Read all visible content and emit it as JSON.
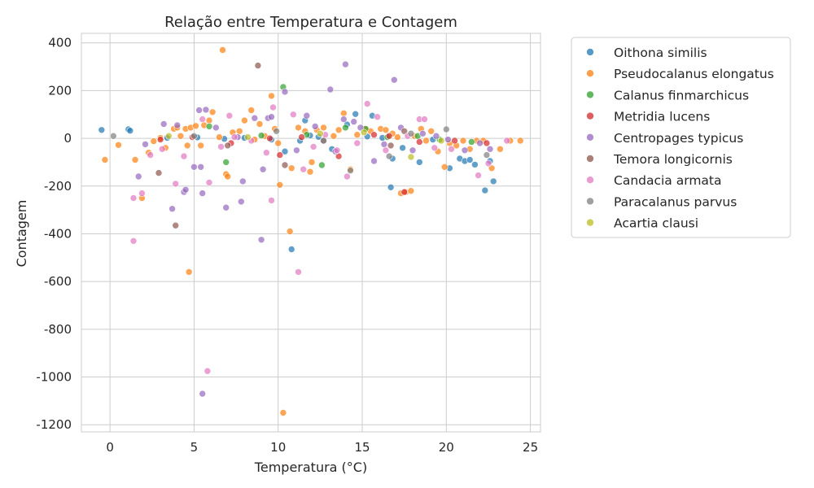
{
  "chart_data": {
    "type": "scatter",
    "title": "Relação entre Temperatura e Contagem",
    "xlabel": "Temperatura (°C)",
    "ylabel": "Contagem",
    "xlim": [
      -1.7,
      25.6
    ],
    "ylim": [
      -1230,
      440
    ],
    "xticks": [
      0,
      5,
      10,
      15,
      20,
      25
    ],
    "yticks": [
      400,
      200,
      0,
      -200,
      -400,
      -600,
      -800,
      -1000,
      -1200
    ],
    "grid": true,
    "legend_position": "outside-right",
    "series": [
      {
        "name": "Oithona similis",
        "color": "#1f77b4",
        "points": [
          [
            -0.5,
            35
          ],
          [
            1.1,
            38
          ],
          [
            1.2,
            32
          ],
          [
            3.4,
            2
          ],
          [
            5.2,
            4
          ],
          [
            6.8,
            -2
          ],
          [
            8.0,
            2
          ],
          [
            9.6,
            -5
          ],
          [
            10.4,
            -55
          ],
          [
            10.8,
            -465
          ],
          [
            11.3,
            -10
          ],
          [
            11.6,
            75
          ],
          [
            11.9,
            12
          ],
          [
            12.4,
            6
          ],
          [
            13.2,
            -45
          ],
          [
            14.1,
            58
          ],
          [
            14.6,
            102
          ],
          [
            15.3,
            8
          ],
          [
            15.6,
            95
          ],
          [
            16.2,
            2
          ],
          [
            16.7,
            -205
          ],
          [
            16.8,
            -85
          ],
          [
            17.4,
            -40
          ],
          [
            18.4,
            -100
          ],
          [
            19.2,
            -5
          ],
          [
            20.2,
            -125
          ],
          [
            20.8,
            -85
          ],
          [
            21.1,
            -95
          ],
          [
            21.4,
            -90
          ],
          [
            21.7,
            -110
          ],
          [
            22.3,
            -218
          ],
          [
            22.6,
            -95
          ],
          [
            22.8,
            -180
          ]
        ]
      },
      {
        "name": "Pseudocalanus elongatus",
        "color": "#ff7f0e",
        "points": [
          [
            -0.3,
            -90
          ],
          [
            0.5,
            -28
          ],
          [
            1.5,
            -90
          ],
          [
            1.9,
            -250
          ],
          [
            2.3,
            -60
          ],
          [
            2.6,
            -12
          ],
          [
            3.0,
            2
          ],
          [
            3.3,
            -40
          ],
          [
            3.8,
            40
          ],
          [
            4.0,
            45
          ],
          [
            4.2,
            10
          ],
          [
            4.5,
            40
          ],
          [
            4.6,
            -30
          ],
          [
            4.7,
            -560
          ],
          [
            4.8,
            45
          ],
          [
            5.1,
            52
          ],
          [
            5.4,
            -30
          ],
          [
            5.6,
            55
          ],
          [
            5.9,
            75
          ],
          [
            6.1,
            110
          ],
          [
            6.5,
            5
          ],
          [
            6.7,
            370
          ],
          [
            6.9,
            -150
          ],
          [
            7.0,
            -160
          ],
          [
            7.3,
            25
          ],
          [
            7.7,
            30
          ],
          [
            8.0,
            75
          ],
          [
            8.4,
            118
          ],
          [
            8.6,
            -5
          ],
          [
            8.9,
            60
          ],
          [
            9.2,
            10
          ],
          [
            9.6,
            178
          ],
          [
            9.8,
            40
          ],
          [
            10.0,
            -20
          ],
          [
            10.1,
            -195
          ],
          [
            10.3,
            -1150
          ],
          [
            10.7,
            -390
          ],
          [
            10.8,
            -125
          ],
          [
            11.2,
            45
          ],
          [
            11.6,
            30
          ],
          [
            11.9,
            -140
          ],
          [
            12.0,
            -100
          ],
          [
            12.3,
            35
          ],
          [
            12.7,
            45
          ],
          [
            13.3,
            10
          ],
          [
            13.6,
            35
          ],
          [
            13.9,
            105
          ],
          [
            14.3,
            -130
          ],
          [
            14.7,
            15
          ],
          [
            15.2,
            40
          ],
          [
            15.5,
            30
          ],
          [
            16.1,
            40
          ],
          [
            16.4,
            35
          ],
          [
            16.8,
            20
          ],
          [
            17.1,
            5
          ],
          [
            17.3,
            -230
          ],
          [
            17.6,
            -225
          ],
          [
            17.9,
            -220
          ],
          [
            18.1,
            10
          ],
          [
            18.5,
            40
          ],
          [
            18.8,
            -10
          ],
          [
            19.1,
            30
          ],
          [
            19.5,
            -55
          ],
          [
            19.9,
            -120
          ],
          [
            20.2,
            -20
          ],
          [
            20.6,
            -30
          ],
          [
            21.0,
            -10
          ],
          [
            21.4,
            -45
          ],
          [
            21.8,
            -10
          ],
          [
            22.2,
            -10
          ],
          [
            22.7,
            -125
          ],
          [
            23.2,
            -45
          ],
          [
            23.8,
            -10
          ],
          [
            24.4,
            -10
          ]
        ]
      },
      {
        "name": "Calanus finmarchicus",
        "color": "#2ca02c",
        "points": [
          [
            5.9,
            50
          ],
          [
            6.9,
            -100
          ],
          [
            9.0,
            12
          ],
          [
            10.3,
            215
          ],
          [
            11.7,
            15
          ],
          [
            12.6,
            -112
          ],
          [
            14.0,
            45
          ],
          [
            15.2,
            40
          ],
          [
            16.5,
            5
          ],
          [
            18.3,
            10
          ],
          [
            19.6,
            -5
          ],
          [
            21.5,
            -15
          ]
        ]
      },
      {
        "name": "Metridia lucens",
        "color": "#d62728",
        "points": [
          [
            3.0,
            -5
          ],
          [
            4.9,
            5
          ],
          [
            7.2,
            -20
          ],
          [
            9.5,
            0
          ],
          [
            10.1,
            -70
          ],
          [
            11.4,
            5
          ],
          [
            13.6,
            -75
          ],
          [
            15.7,
            15
          ],
          [
            16.6,
            10
          ],
          [
            17.5,
            -225
          ],
          [
            18.4,
            -15
          ],
          [
            20.5,
            -10
          ],
          [
            22.4,
            -20
          ]
        ]
      },
      {
        "name": "Centropages typicus",
        "color": "#9467bd",
        "points": [
          [
            1.7,
            -160
          ],
          [
            2.1,
            -25
          ],
          [
            3.2,
            60
          ],
          [
            3.7,
            -295
          ],
          [
            4.0,
            55
          ],
          [
            4.4,
            -225
          ],
          [
            4.5,
            -215
          ],
          [
            5.0,
            -120
          ],
          [
            5.3,
            118
          ],
          [
            5.4,
            -120
          ],
          [
            5.5,
            -230
          ],
          [
            5.5,
            -1070
          ],
          [
            5.7,
            120
          ],
          [
            6.3,
            45
          ],
          [
            6.9,
            -290
          ],
          [
            7.6,
            5
          ],
          [
            7.8,
            -265
          ],
          [
            7.9,
            -180
          ],
          [
            8.6,
            85
          ],
          [
            9.0,
            -425
          ],
          [
            9.1,
            -130
          ],
          [
            9.4,
            85
          ],
          [
            9.6,
            90
          ],
          [
            10.4,
            195
          ],
          [
            11.1,
            -50
          ],
          [
            11.7,
            95
          ],
          [
            12.2,
            50
          ],
          [
            13.1,
            205
          ],
          [
            13.4,
            -55
          ],
          [
            13.9,
            80
          ],
          [
            14.0,
            310
          ],
          [
            14.5,
            70
          ],
          [
            14.9,
            45
          ],
          [
            15.7,
            -95
          ],
          [
            16.3,
            -25
          ],
          [
            16.9,
            245
          ],
          [
            17.3,
            45
          ],
          [
            18.0,
            -50
          ],
          [
            18.6,
            20
          ],
          [
            19.4,
            10
          ],
          [
            20.1,
            -5
          ],
          [
            21.1,
            -50
          ],
          [
            22.0,
            -20
          ],
          [
            22.6,
            -45
          ]
        ]
      },
      {
        "name": "Temora longicornis",
        "color": "#8c564b",
        "points": [
          [
            2.9,
            -145
          ],
          [
            3.9,
            -365
          ],
          [
            7.0,
            -30
          ],
          [
            8.8,
            305
          ],
          [
            10.4,
            -112
          ],
          [
            12.7,
            -10
          ],
          [
            16.7,
            -30
          ],
          [
            17.5,
            30
          ]
        ]
      },
      {
        "name": "Candacia armata",
        "color": "#e377c2",
        "points": [
          [
            1.4,
            -250
          ],
          [
            1.4,
            -430
          ],
          [
            1.9,
            -230
          ],
          [
            2.4,
            -70
          ],
          [
            3.1,
            -45
          ],
          [
            3.9,
            -190
          ],
          [
            4.4,
            -75
          ],
          [
            5.5,
            80
          ],
          [
            5.8,
            -975
          ],
          [
            5.9,
            -185
          ],
          [
            6.6,
            -35
          ],
          [
            7.1,
            95
          ],
          [
            7.4,
            5
          ],
          [
            8.4,
            -10
          ],
          [
            9.3,
            -60
          ],
          [
            9.6,
            -260
          ],
          [
            9.7,
            130
          ],
          [
            10.9,
            100
          ],
          [
            11.2,
            -560
          ],
          [
            11.5,
            -130
          ],
          [
            12.1,
            -35
          ],
          [
            12.8,
            15
          ],
          [
            13.5,
            -50
          ],
          [
            14.1,
            -160
          ],
          [
            14.7,
            -20
          ],
          [
            15.3,
            145
          ],
          [
            15.9,
            90
          ],
          [
            16.4,
            -50
          ],
          [
            17.7,
            10
          ],
          [
            18.4,
            80
          ],
          [
            18.7,
            80
          ],
          [
            19.3,
            -40
          ],
          [
            20.3,
            -45
          ],
          [
            21.9,
            -155
          ],
          [
            22.5,
            -105
          ],
          [
            23.6,
            -10
          ]
        ]
      },
      {
        "name": "Paracalanus parvus",
        "color": "#7f7f7f",
        "points": [
          [
            0.2,
            10
          ],
          [
            5.0,
            10
          ],
          [
            9.9,
            30
          ],
          [
            12.7,
            -10
          ],
          [
            14.3,
            -135
          ],
          [
            16.6,
            -75
          ],
          [
            17.9,
            20
          ],
          [
            20.0,
            38
          ],
          [
            22.4,
            -70
          ]
        ]
      },
      {
        "name": "Acartia clausi",
        "color": "#bcbd22",
        "points": [
          [
            3.5,
            10
          ],
          [
            8.2,
            5
          ],
          [
            12.5,
            20
          ],
          [
            15.1,
            25
          ],
          [
            17.9,
            -78
          ],
          [
            19.7,
            -10
          ]
        ]
      }
    ]
  }
}
